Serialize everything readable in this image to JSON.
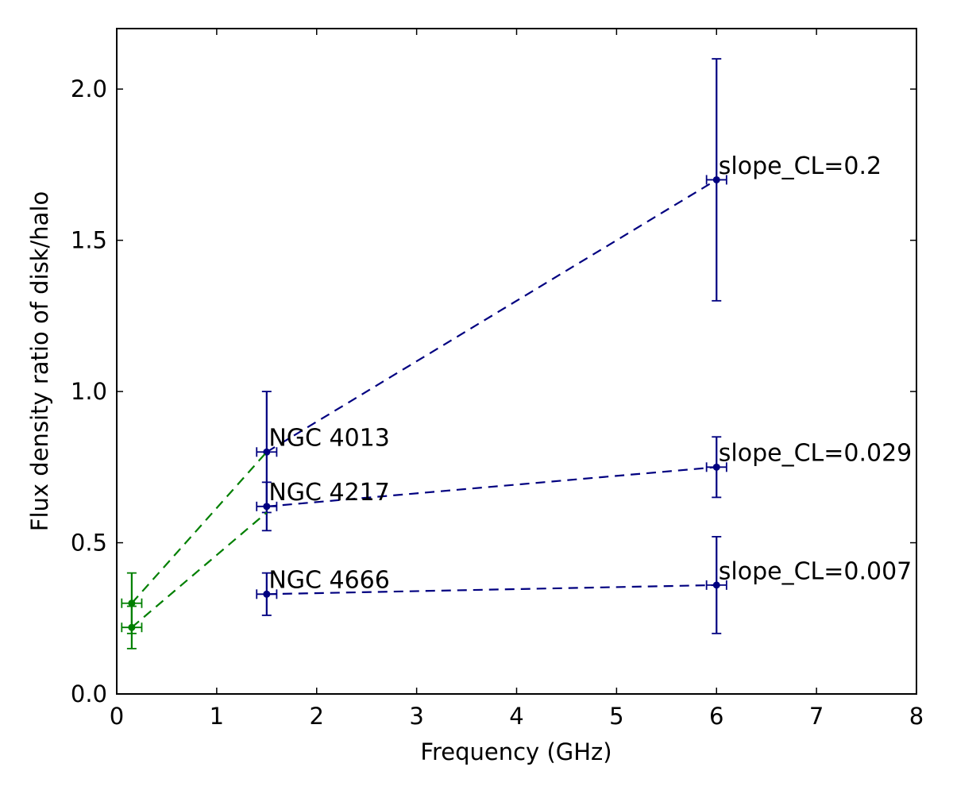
{
  "chart_data": {
    "type": "scatter",
    "title": "",
    "xlabel": "Frequency (GHz)",
    "ylabel": "Flux density ratio of disk/halo",
    "xlim": [
      0,
      8
    ],
    "ylim": [
      0,
      2.2
    ],
    "xticks": [
      {
        "value": 0,
        "label": "0"
      },
      {
        "value": 1,
        "label": "1"
      },
      {
        "value": 2,
        "label": "2"
      },
      {
        "value": 3,
        "label": "3"
      },
      {
        "value": 4,
        "label": "4"
      },
      {
        "value": 5,
        "label": "5"
      },
      {
        "value": 6,
        "label": "6"
      },
      {
        "value": 7,
        "label": "7"
      },
      {
        "value": 8,
        "label": "8"
      }
    ],
    "yticks": [
      {
        "value": 0,
        "label": "0.0"
      },
      {
        "value": 0.5,
        "label": "0.5"
      },
      {
        "value": 1.0,
        "label": "1.0"
      },
      {
        "value": 1.5,
        "label": "1.5"
      },
      {
        "value": 2.0,
        "label": "2.0"
      }
    ],
    "grid": false,
    "colors": {
      "blue": "#000080",
      "green": "#007f00"
    },
    "series": [
      {
        "key": "ngc4013-high",
        "color": "#000080",
        "points": [
          {
            "x": 1.5,
            "y": 0.8,
            "xerr": 0.1,
            "ylo": 0.6,
            "yhi": 1.0
          },
          {
            "x": 6.0,
            "y": 1.7,
            "xerr": 0.1,
            "ylo": 1.3,
            "yhi": 2.1
          }
        ]
      },
      {
        "key": "ngc4217-high",
        "color": "#000080",
        "points": [
          {
            "x": 1.5,
            "y": 0.62,
            "xerr": 0.1,
            "ylo": 0.54,
            "yhi": 0.7
          },
          {
            "x": 6.0,
            "y": 0.75,
            "xerr": 0.1,
            "ylo": 0.65,
            "yhi": 0.85
          }
        ]
      },
      {
        "key": "ngc4666-high",
        "color": "#000080",
        "points": [
          {
            "x": 1.5,
            "y": 0.33,
            "xerr": 0.1,
            "ylo": 0.26,
            "yhi": 0.4
          },
          {
            "x": 6.0,
            "y": 0.36,
            "xerr": 0.1,
            "ylo": 0.2,
            "yhi": 0.52
          }
        ]
      },
      {
        "key": "ngc4013-low",
        "color": "#007f00",
        "points": [
          {
            "x": 0.15,
            "y": 0.3,
            "xerr": 0.1,
            "ylo": 0.2,
            "yhi": 0.4
          },
          {
            "x": 1.5,
            "y": 0.8
          }
        ]
      },
      {
        "key": "ngc4217-low",
        "color": "#007f00",
        "points": [
          {
            "x": 0.15,
            "y": 0.22,
            "xerr": 0.1,
            "ylo": 0.15,
            "yhi": 0.29
          },
          {
            "x": 1.5,
            "y": 0.6
          }
        ]
      }
    ],
    "annotations": [
      {
        "text": "NGC 4013",
        "x": 1.52,
        "y": 0.82
      },
      {
        "text": "NGC 4217",
        "x": 1.52,
        "y": 0.64
      },
      {
        "text": "NGC 4666",
        "x": 1.52,
        "y": 0.35
      },
      {
        "text": "slope_CL=0.2",
        "x": 6.02,
        "y": 1.72
      },
      {
        "text": "slope_CL=0.029",
        "x": 6.02,
        "y": 0.77
      },
      {
        "text": "slope_CL=0.007",
        "x": 6.02,
        "y": 0.38
      }
    ]
  }
}
